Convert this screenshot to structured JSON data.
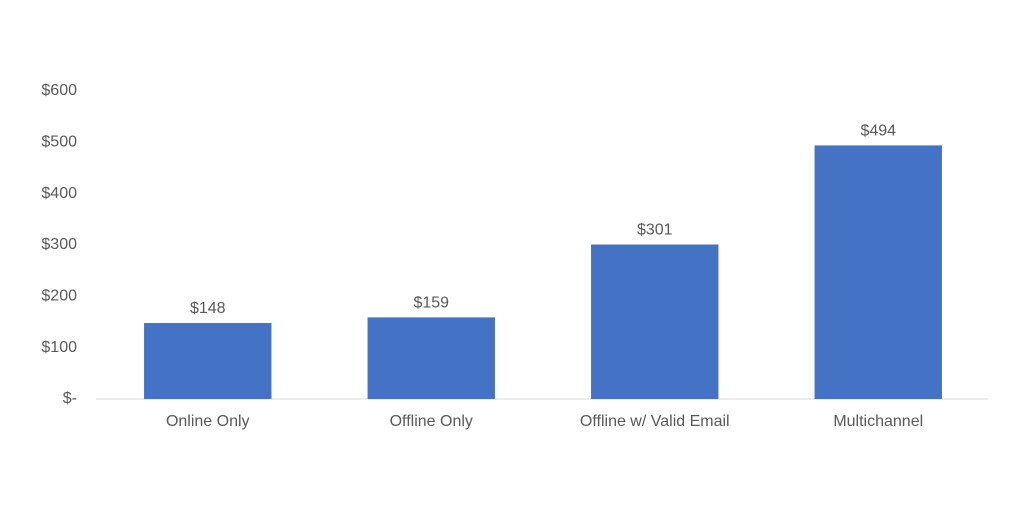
{
  "chart_data": {
    "type": "bar",
    "categories": [
      "Online Only",
      "Offline Only",
      "Offline w/ Valid Email",
      "Multichannel"
    ],
    "values": [
      148,
      159,
      301,
      494
    ],
    "value_labels": [
      "$148",
      "$159",
      "$301",
      "$494"
    ],
    "color": "#4472c4",
    "ylim": [
      0,
      600
    ],
    "yticks": [
      {
        "value": 0,
        "label": "$-"
      },
      {
        "value": 100,
        "label": "$100"
      },
      {
        "value": 200,
        "label": "$200"
      },
      {
        "value": 300,
        "label": "$300"
      },
      {
        "value": 400,
        "label": "$400"
      },
      {
        "value": 500,
        "label": "$500"
      },
      {
        "value": 600,
        "label": "$600"
      }
    ],
    "grid": false
  }
}
